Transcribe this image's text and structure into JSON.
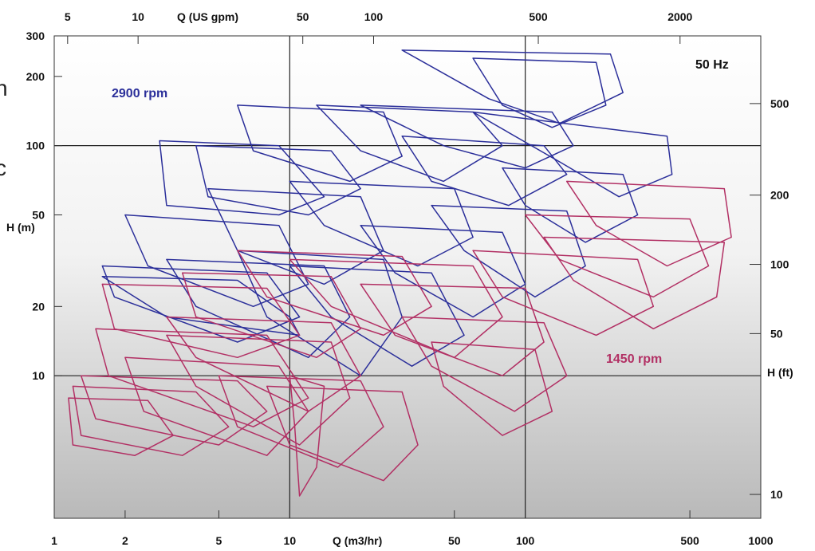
{
  "edge_fragments": [
    "n",
    "c"
  ],
  "chart_data": {
    "type": "line",
    "frequency_label": "50 Hz",
    "x_axis_bottom": {
      "label": "Q (m3/hr)",
      "scale": "log",
      "range": [
        1,
        1000
      ],
      "ticks": [
        "1",
        "2",
        "5",
        "10",
        "50",
        "100",
        "500",
        "1000"
      ],
      "tick_values": [
        1,
        2,
        5,
        10,
        50,
        100,
        500,
        1000
      ]
    },
    "x_axis_top": {
      "label": "Q (US gpm)",
      "scale": "log",
      "ticks": [
        "5",
        "10",
        "50",
        "100",
        "500",
        "2000"
      ],
      "tick_values_m3h": [
        1.14,
        2.27,
        11.36,
        22.7,
        113.6,
        454.2
      ]
    },
    "y_axis_left": {
      "label": "H (m)",
      "scale": "log",
      "range": [
        2.4,
        300
      ],
      "ticks": [
        "10",
        "20",
        "50",
        "100",
        "200",
        "300"
      ],
      "tick_values": [
        10,
        20,
        50,
        100,
        200,
        300
      ]
    },
    "y_axis_right": {
      "label": "H (ft)",
      "scale": "log",
      "ticks": [
        "10",
        "50",
        "100",
        "200",
        "500"
      ],
      "tick_values_m": [
        3.048,
        15.24,
        30.48,
        60.96,
        152.4
      ]
    },
    "grid_lines": {
      "vertical": [
        10,
        100
      ],
      "horizontal": [
        10,
        100
      ]
    },
    "series": [
      {
        "name": "2900 rpm",
        "color": "#2b2f9a",
        "regions": [
          [
            [
              2.8,
              105
            ],
            [
              9,
              100
            ],
            [
              14,
              60
            ],
            [
              9,
              50
            ],
            [
              3,
              55
            ]
          ],
          [
            [
              4,
              100
            ],
            [
              15,
              95
            ],
            [
              20,
              65
            ],
            [
              12,
              50
            ],
            [
              4.5,
              60
            ]
          ],
          [
            [
              6,
              150
            ],
            [
              25,
              140
            ],
            [
              30,
              90
            ],
            [
              18,
              70
            ],
            [
              7,
              95
            ]
          ],
          [
            [
              13,
              150
            ],
            [
              60,
              140
            ],
            [
              80,
              100
            ],
            [
              45,
              70
            ],
            [
              20,
              95
            ]
          ],
          [
            [
              30,
              260
            ],
            [
              230,
              250
            ],
            [
              260,
              170
            ],
            [
              140,
              125
            ],
            [
              70,
              160
            ]
          ],
          [
            [
              60,
              240
            ],
            [
              200,
              230
            ],
            [
              220,
              150
            ],
            [
              130,
              120
            ],
            [
              80,
              150
            ]
          ],
          [
            [
              20,
              150
            ],
            [
              130,
              140
            ],
            [
              160,
              100
            ],
            [
              100,
              80
            ],
            [
              45,
              100
            ]
          ],
          [
            [
              60,
              140
            ],
            [
              400,
              110
            ],
            [
              420,
              75
            ],
            [
              250,
              60
            ],
            [
              140,
              85
            ]
          ],
          [
            [
              30,
              110
            ],
            [
              120,
              100
            ],
            [
              150,
              75
            ],
            [
              85,
              55
            ],
            [
              40,
              70
            ]
          ],
          [
            [
              10,
              70
            ],
            [
              50,
              65
            ],
            [
              60,
              40
            ],
            [
              35,
              30
            ],
            [
              14,
              45
            ]
          ],
          [
            [
              4.5,
              65
            ],
            [
              20,
              60
            ],
            [
              25,
              35
            ],
            [
              14,
              25
            ],
            [
              6,
              35
            ]
          ],
          [
            [
              2,
              50
            ],
            [
              9,
              45
            ],
            [
              12,
              25
            ],
            [
              7,
              20
            ],
            [
              2.5,
              30
            ]
          ],
          [
            [
              1.6,
              30
            ],
            [
              8,
              28
            ],
            [
              11,
              18
            ],
            [
              6,
              14
            ],
            [
              1.8,
              22
            ]
          ],
          [
            [
              1.6,
              27
            ],
            [
              6,
              26
            ],
            [
              10,
              18
            ],
            [
              11,
              15
            ],
            [
              3,
              18
            ]
          ],
          [
            [
              3,
              32
            ],
            [
              14,
              30
            ],
            [
              18,
              18
            ],
            [
              12,
              12
            ],
            [
              4,
              20
            ]
          ],
          [
            [
              6,
              35
            ],
            [
              25,
              32
            ],
            [
              30,
              18
            ],
            [
              20,
              10
            ],
            [
              8,
              18
            ]
          ],
          [
            [
              10,
              30
            ],
            [
              40,
              28
            ],
            [
              55,
              15
            ],
            [
              33,
              11
            ],
            [
              15,
              18
            ]
          ],
          [
            [
              20,
              45
            ],
            [
              80,
              42
            ],
            [
              100,
              25
            ],
            [
              60,
              18
            ],
            [
              28,
              28
            ]
          ],
          [
            [
              40,
              55
            ],
            [
              150,
              52
            ],
            [
              180,
              30
            ],
            [
              110,
              22
            ],
            [
              55,
              35
            ]
          ],
          [
            [
              80,
              80
            ],
            [
              260,
              75
            ],
            [
              300,
              50
            ],
            [
              180,
              38
            ],
            [
              100,
              55
            ]
          ]
        ]
      },
      {
        "name": "1450 rpm",
        "color": "#b23064",
        "regions": [
          [
            [
              1.2,
              9
            ],
            [
              4,
              8.5
            ],
            [
              5.5,
              6
            ],
            [
              3.5,
              4.5
            ],
            [
              1.3,
              5.5
            ]
          ],
          [
            [
              1.15,
              8
            ],
            [
              2.5,
              7.8
            ],
            [
              3.2,
              5.5
            ],
            [
              2.2,
              4.5
            ],
            [
              1.2,
              5
            ]
          ],
          [
            [
              1.3,
              10
            ],
            [
              6,
              9.5
            ],
            [
              8,
              7
            ],
            [
              5,
              5
            ],
            [
              1.5,
              6.5
            ]
          ],
          [
            [
              2,
              12
            ],
            [
              9,
              11
            ],
            [
              12,
              7
            ],
            [
              8,
              4.5
            ],
            [
              2.4,
              7
            ]
          ],
          [
            [
              3,
              15
            ],
            [
              15,
              14
            ],
            [
              18,
              8
            ],
            [
              11,
              5
            ],
            [
              4,
              9
            ]
          ],
          [
            [
              5,
              10
            ],
            [
              20,
              9.5
            ],
            [
              25,
              6
            ],
            [
              16,
              4
            ],
            [
              6,
              6
            ]
          ],
          [
            [
              8,
              9
            ],
            [
              30,
              8.5
            ],
            [
              35,
              5
            ],
            [
              25,
              3.5
            ],
            [
              10,
              5
            ]
          ],
          [
            [
              10,
              10
            ],
            [
              14,
              9
            ],
            [
              13,
              4
            ],
            [
              11,
              3
            ],
            [
              10.5,
              6
            ]
          ],
          [
            [
              1.5,
              16
            ],
            [
              8,
              15
            ],
            [
              12,
              8
            ],
            [
              7,
              6
            ],
            [
              1.7,
              10
            ]
          ],
          [
            [
              3,
              18
            ],
            [
              15,
              17
            ],
            [
              20,
              10
            ],
            [
              12,
              7
            ],
            [
              4,
              12
            ]
          ],
          [
            [
              1.6,
              25
            ],
            [
              8,
              24
            ],
            [
              11,
              15
            ],
            [
              6,
              12
            ],
            [
              1.8,
              16
            ]
          ],
          [
            [
              3.5,
              28
            ],
            [
              15,
              27
            ],
            [
              20,
              16
            ],
            [
              13,
              12
            ],
            [
              4,
              18
            ]
          ],
          [
            [
              6,
              35
            ],
            [
              30,
              33
            ],
            [
              40,
              20
            ],
            [
              25,
              15
            ],
            [
              8,
              22
            ]
          ],
          [
            [
              10,
              32
            ],
            [
              60,
              30
            ],
            [
              80,
              18
            ],
            [
              50,
              12
            ],
            [
              15,
              20
            ]
          ],
          [
            [
              20,
              25
            ],
            [
              100,
              24
            ],
            [
              120,
              14
            ],
            [
              80,
              10
            ],
            [
              28,
              15
            ]
          ],
          [
            [
              30,
              18
            ],
            [
              120,
              17
            ],
            [
              150,
              10
            ],
            [
              90,
              7
            ],
            [
              40,
              11
            ]
          ],
          [
            [
              40,
              14
            ],
            [
              110,
              13
            ],
            [
              130,
              7
            ],
            [
              80,
              5.5
            ],
            [
              45,
              9
            ]
          ],
          [
            [
              60,
              35
            ],
            [
              300,
              32
            ],
            [
              350,
              20
            ],
            [
              200,
              15
            ],
            [
              80,
              22
            ]
          ],
          [
            [
              100,
              50
            ],
            [
              500,
              48
            ],
            [
              600,
              30
            ],
            [
              350,
              22
            ],
            [
              140,
              32
            ]
          ],
          [
            [
              150,
              70
            ],
            [
              700,
              65
            ],
            [
              750,
              40
            ],
            [
              400,
              30
            ],
            [
              200,
              45
            ]
          ],
          [
            [
              120,
              40
            ],
            [
              700,
              38
            ],
            [
              650,
              22
            ],
            [
              350,
              16
            ],
            [
              160,
              26
            ]
          ]
        ]
      }
    ]
  }
}
